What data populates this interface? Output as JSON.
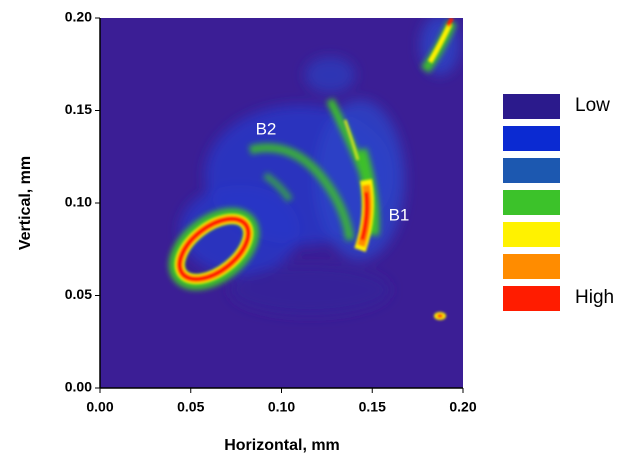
{
  "chart_data": {
    "type": "heatmap",
    "x_label": "Horizontal, mm",
    "y_label": "Vertical, mm",
    "xlim": [
      0,
      0.2
    ],
    "ylim": [
      0,
      0.2
    ],
    "xticks": [
      {
        "value": 0,
        "label": "0.00"
      },
      0.05,
      {
        "value": 0.1,
        "label": "0.10"
      },
      0.15,
      {
        "value": 0.2,
        "label": "0.20"
      }
    ],
    "yticks": [
      {
        "value": 0,
        "label": "0.00"
      },
      0.05,
      {
        "value": 0.1,
        "label": "0.10"
      },
      0.15,
      {
        "value": 0.2,
        "label": "0.20"
      }
    ],
    "legend": {
      "colors": [
        "#2b1a8c",
        "#0b2ad2",
        "#1c58b0",
        "#3cc22a",
        "#fff200",
        "#ff8c00",
        "#ff1c00"
      ],
      "low_label": "Low",
      "high_label": "High"
    },
    "annotations": [
      "B1",
      "B2"
    ]
  }
}
